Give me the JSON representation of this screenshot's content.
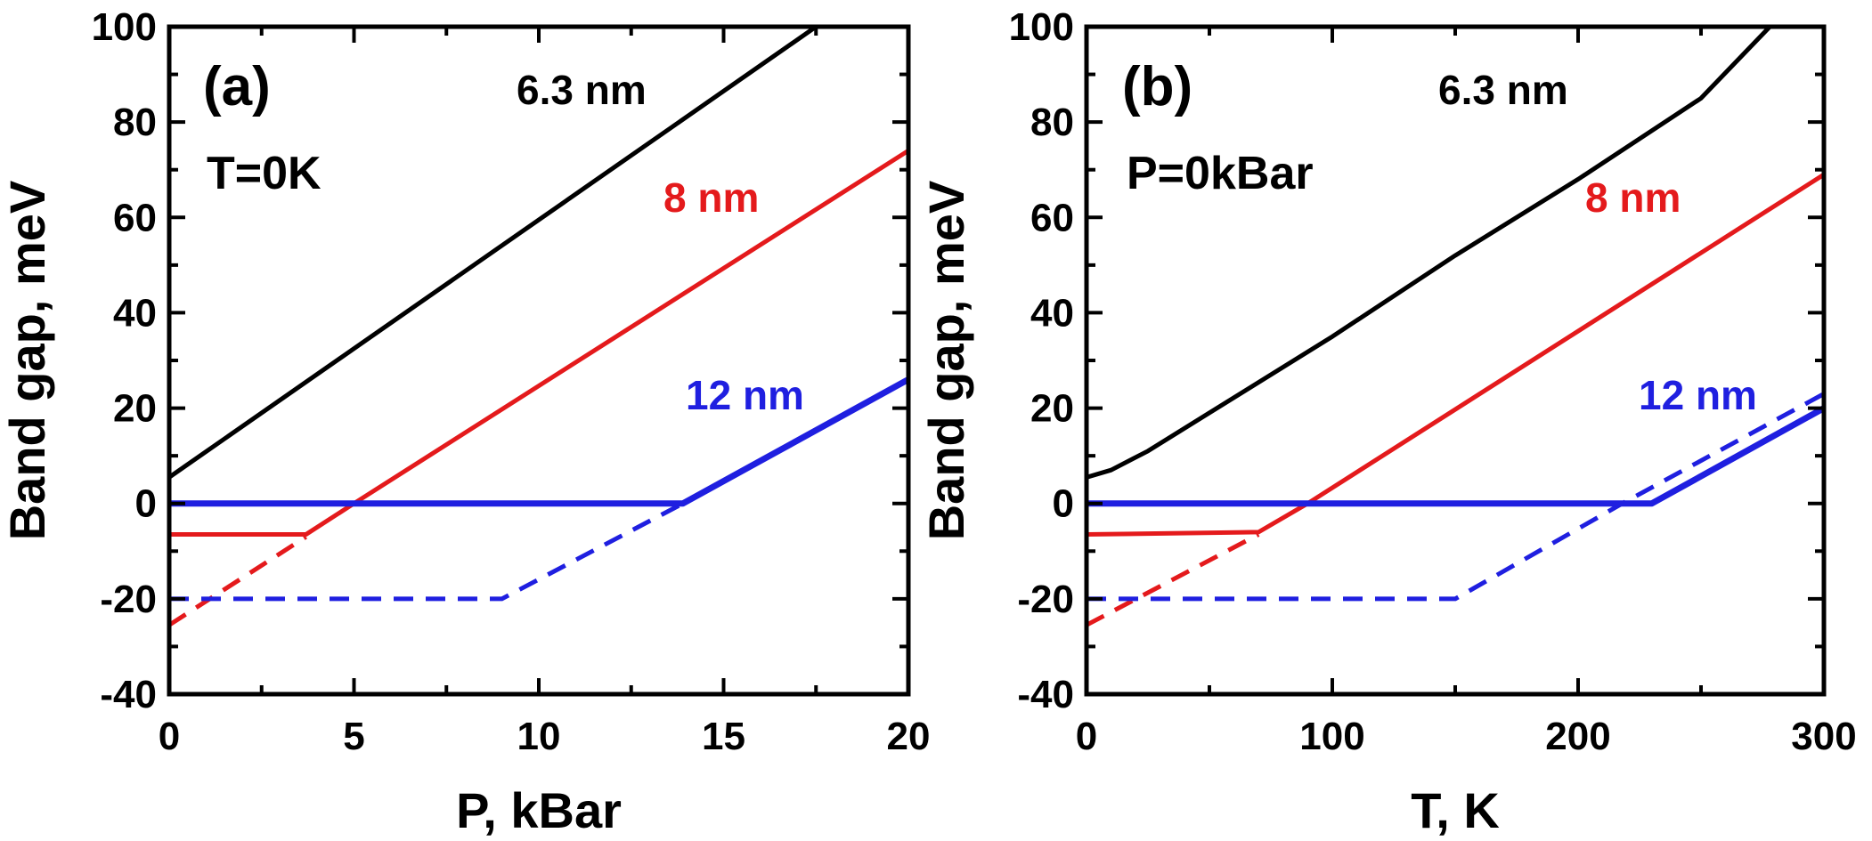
{
  "colors": {
    "black": "#000000",
    "red": "#e41a1c",
    "blue": "#1f1fe0"
  },
  "chart_data": [
    {
      "type": "line",
      "panel": "(a)",
      "condition": "T=0K",
      "xlabel": "P, kBar",
      "ylabel": "Band gap, meV",
      "xlim": [
        0,
        20
      ],
      "ylim": [
        -40,
        100
      ],
      "xticks": [
        0,
        5,
        10,
        15,
        20
      ],
      "yticks": [
        -40,
        -20,
        0,
        20,
        40,
        60,
        80,
        100
      ],
      "series": [
        {
          "name": "6.3 nm",
          "color": "black",
          "style": "solid",
          "x": [
            0,
            17.5
          ],
          "y": [
            5.5,
            100
          ]
        },
        {
          "name": "8 nm",
          "color": "red",
          "style": "solid",
          "x": [
            0,
            3.7,
            5.0,
            20
          ],
          "y": [
            -6.5,
            -6.5,
            0,
            74
          ]
        },
        {
          "color": "red",
          "style": "dashed",
          "x": [
            0,
            3.7
          ],
          "y": [
            -25.5,
            -7
          ]
        },
        {
          "name": "12 nm",
          "color": "blue",
          "style": "solid",
          "x": [
            0,
            13.9,
            20
          ],
          "y": [
            0,
            0,
            26
          ]
        },
        {
          "color": "blue",
          "style": "dashed",
          "x": [
            0,
            9.0,
            13.9,
            20
          ],
          "y": [
            -20,
            -20,
            0,
            26
          ]
        }
      ]
    },
    {
      "type": "line",
      "panel": "(b)",
      "condition": "P=0kBar",
      "xlabel": "T, K",
      "ylabel": "Band gap, meV",
      "xlim": [
        0,
        300
      ],
      "ylim": [
        -40,
        100
      ],
      "xticks": [
        0,
        100,
        200,
        300
      ],
      "yticks": [
        -40,
        -20,
        0,
        20,
        40,
        60,
        80,
        100
      ],
      "series": [
        {
          "name": "6.3 nm",
          "color": "black",
          "style": "solid",
          "x": [
            0,
            10,
            25,
            50,
            100,
            150,
            200,
            250,
            278
          ],
          "y": [
            5.5,
            7,
            11,
            19,
            35,
            52,
            68,
            85,
            100
          ]
        },
        {
          "name": "8 nm",
          "color": "red",
          "style": "solid",
          "x": [
            0,
            70,
            90,
            300
          ],
          "y": [
            -6.5,
            -6,
            0,
            69
          ]
        },
        {
          "color": "red",
          "style": "dashed",
          "x": [
            0,
            70
          ],
          "y": [
            -25.5,
            -6.5
          ]
        },
        {
          "name": "12 nm",
          "color": "blue",
          "style": "solid",
          "x": [
            0,
            230,
            300
          ],
          "y": [
            0,
            0,
            20
          ]
        },
        {
          "color": "blue",
          "style": "dashed",
          "x": [
            0,
            150,
            218,
            300
          ],
          "y": [
            -20,
            -20,
            0,
            23
          ]
        }
      ]
    }
  ]
}
